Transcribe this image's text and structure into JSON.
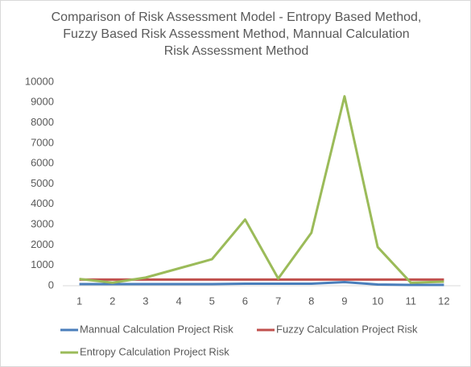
{
  "chart_data": {
    "type": "line",
    "title": "Comparison of Risk Assessment Model - Entropy Based Method, Fuzzy Based Risk Assessment Method, Mannual Calculation Risk Assessment Method",
    "categories": [
      1,
      2,
      3,
      4,
      5,
      6,
      7,
      8,
      9,
      10,
      11,
      12
    ],
    "series": [
      {
        "name": "Mannual Calculation Project Risk",
        "color": "#4a7ebb",
        "values": [
          80,
          80,
          80,
          80,
          80,
          100,
          100,
          100,
          180,
          60,
          40,
          40
        ]
      },
      {
        "name": "Fuzzy Calculation Project Risk",
        "color": "#c0504d",
        "values": [
          300,
          300,
          300,
          300,
          300,
          300,
          300,
          300,
          300,
          300,
          300,
          300
        ]
      },
      {
        "name": "Entropy Calculation Project Risk",
        "color": "#9bbb59",
        "values": [
          330,
          150,
          400,
          850,
          1300,
          3250,
          350,
          2600,
          9300,
          1900,
          150,
          200
        ]
      }
    ],
    "ylim": [
      0,
      10000
    ],
    "yticks": [
      0,
      1000,
      2000,
      3000,
      4000,
      5000,
      6000,
      7000,
      8000,
      9000,
      10000
    ],
    "grid": false,
    "legend": "bottom"
  }
}
